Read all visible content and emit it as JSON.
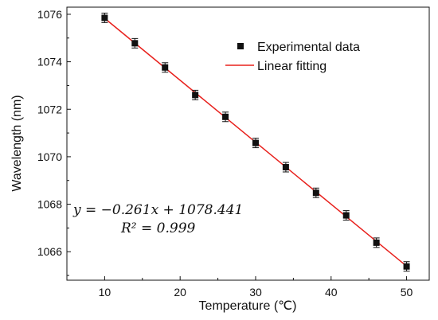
{
  "chart_data": {
    "type": "scatter",
    "xlabel": "Temperature (℃)",
    "ylabel": "Wavelength (nm)",
    "xlim": [
      5,
      53
    ],
    "ylim": [
      1064.8,
      1076.3
    ],
    "xticks": [
      10,
      20,
      30,
      40,
      50
    ],
    "yticks": [
      1066,
      1068,
      1070,
      1072,
      1074,
      1076
    ],
    "grid": false,
    "legend_position": "top-right",
    "series": [
      {
        "name": "Experimental data",
        "kind": "points_with_error_bars",
        "color": "#111111",
        "x": [
          10,
          14,
          18,
          22,
          26,
          30,
          34,
          38,
          42,
          46,
          50
        ],
        "y": [
          1075.85,
          1074.78,
          1073.76,
          1072.6,
          1071.68,
          1070.58,
          1069.56,
          1068.48,
          1067.53,
          1066.38,
          1065.38
        ],
        "error": [
          0.2,
          0.2,
          0.2,
          0.2,
          0.2,
          0.2,
          0.2,
          0.2,
          0.2,
          0.2,
          0.2
        ]
      },
      {
        "name": "Linear fitting",
        "kind": "line",
        "color": "#e8201c",
        "slope": -0.261,
        "intercept": 1078.441,
        "x_range": [
          10,
          50
        ]
      }
    ],
    "annotations": {
      "equation": "y = −0.261x + 1078.441",
      "r_squared": "R² = 0.999"
    }
  }
}
